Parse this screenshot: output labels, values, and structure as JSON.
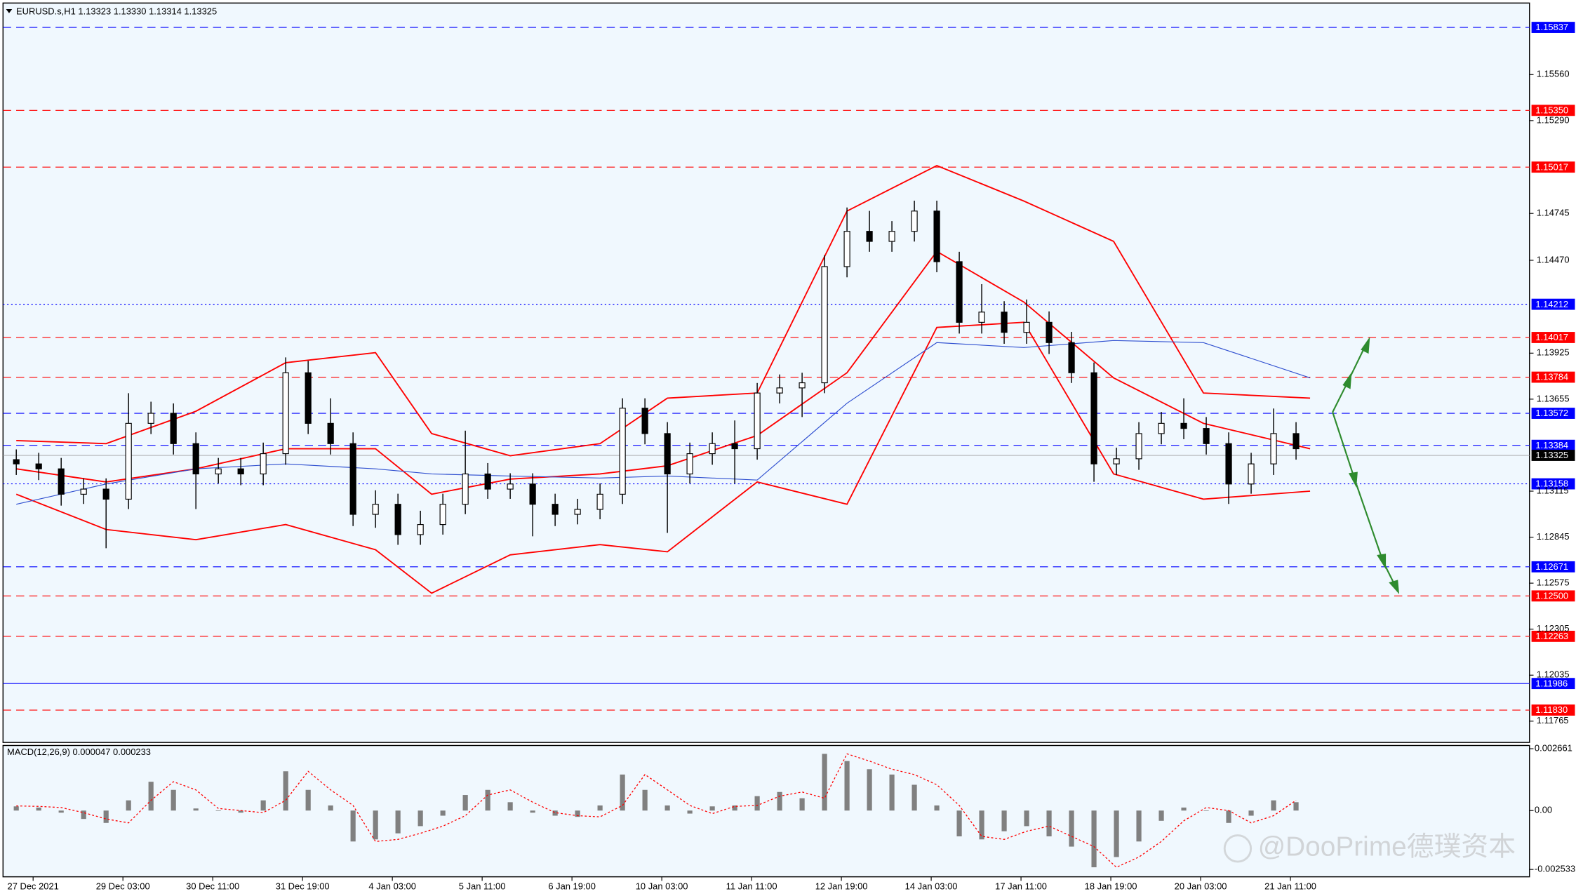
{
  "chart_data": {
    "type": "candlestick",
    "title": "EURUSD.s,H1  1.13323 1.13330 1.13314 1.13325",
    "watermark": "@DooPrime德璞资本",
    "xlim": [
      0,
      543
    ],
    "xticks": [
      {
        "value": 10,
        "label": "27 Dec 2021"
      },
      {
        "value": 42,
        "label": "29 Dec 03:00"
      },
      {
        "value": 74,
        "label": "30 Dec 11:00"
      },
      {
        "value": 106,
        "label": "31 Dec 19:00"
      },
      {
        "value": 138,
        "label": "4 Jan 03:00"
      },
      {
        "value": 170,
        "label": "5 Jan 11:00"
      },
      {
        "value": 202,
        "label": "6 Jan 19:00"
      },
      {
        "value": 234,
        "label": "10 Jan 03:00"
      },
      {
        "value": 266,
        "label": "11 Jan 11:00"
      },
      {
        "value": 298,
        "label": "12 Jan 19:00"
      },
      {
        "value": 330,
        "label": "14 Jan 03:00"
      },
      {
        "value": 362,
        "label": "17 Jan 11:00"
      },
      {
        "value": 394,
        "label": "18 Jan 19:00"
      },
      {
        "value": 426,
        "label": "20 Jan 03:00"
      },
      {
        "value": 458,
        "label": "21 Jan 11:00"
      }
    ],
    "ylim": [
      1.1164,
      1.1598
    ],
    "yticks": [
      {
        "value": 1.1556,
        "label": "1.15560"
      },
      {
        "value": 1.1529,
        "label": "1.15290"
      },
      {
        "value": 1.14745,
        "label": "1.14745"
      },
      {
        "value": 1.1447,
        "label": "1.14470"
      },
      {
        "value": 1.13925,
        "label": "1.13925"
      },
      {
        "value": 1.13655,
        "label": "1.13655"
      },
      {
        "value": 1.13115,
        "label": "1.13115"
      },
      {
        "value": 1.12845,
        "label": "1.12845"
      },
      {
        "value": 1.12575,
        "label": "1.12575"
      },
      {
        "value": 1.12305,
        "label": "1.12305"
      },
      {
        "value": 1.12035,
        "label": "1.12035"
      },
      {
        "value": 1.11765,
        "label": "1.11765"
      }
    ],
    "x": [
      4,
      12,
      20,
      28,
      36,
      44,
      52,
      60,
      68,
      76,
      84,
      92,
      100,
      108,
      116,
      124,
      132,
      140,
      148,
      156,
      164,
      172,
      180,
      188,
      196,
      204,
      212,
      220,
      228,
      236,
      244,
      252,
      260,
      268,
      276,
      284,
      292,
      300,
      308,
      316,
      324,
      332,
      340,
      348,
      356,
      364,
      372,
      380,
      388,
      396,
      404,
      412,
      420,
      428,
      436,
      444,
      452,
      460
    ],
    "open": [
      1.133,
      1.13275,
      1.13246,
      1.13097,
      1.13127,
      1.13068,
      1.13513,
      1.13572,
      1.13394,
      1.13216,
      1.13246,
      1.13216,
      1.13335,
      1.1381,
      1.13513,
      1.13394,
      1.12979,
      1.13038,
      1.1286,
      1.12919,
      1.13038,
      1.13216,
      1.13127,
      1.13157,
      1.13038,
      1.12979,
      1.13008,
      1.13097,
      1.13602,
      1.13453,
      1.13216,
      1.13335,
      1.13394,
      1.13364,
      1.13691,
      1.13721,
      1.13751,
      1.14433,
      1.1464,
      1.14581,
      1.1464,
      1.14759,
      1.14462,
      1.14106,
      1.14166,
      1.14047,
      1.14106,
      1.13987,
      1.1381,
      1.13275,
      1.13305,
      1.13453,
      1.13513,
      1.13483,
      1.13394,
      1.13157,
      1.13275,
      1.13453
    ],
    "high": [
      1.1336,
      1.1334,
      1.1331,
      1.1319,
      1.1319,
      1.1369,
      1.1364,
      1.1363,
      1.1346,
      1.1331,
      1.1331,
      1.134,
      1.139,
      1.1388,
      1.1366,
      1.1346,
      1.1312,
      1.131,
      1.13,
      1.131,
      1.1347,
      1.1328,
      1.1322,
      1.1322,
      1.131,
      1.1307,
      1.1316,
      1.1366,
      1.1366,
      1.1352,
      1.134,
      1.1346,
      1.1353,
      1.1375,
      1.138,
      1.1381,
      1.145,
      1.1478,
      1.1476,
      1.147,
      1.1482,
      1.1482,
      1.1452,
      1.1433,
      1.1423,
      1.1424,
      1.1417,
      1.1405,
      1.1387,
      1.1337,
      1.1352,
      1.1358,
      1.1366,
      1.1355,
      1.1346,
      1.1334,
      1.136,
      1.1352
    ],
    "low": [
      1.1321,
      1.1318,
      1.1303,
      1.1304,
      1.1278,
      1.1301,
      1.1345,
      1.1333,
      1.1301,
      1.1316,
      1.1315,
      1.1315,
      1.1327,
      1.1345,
      1.1333,
      1.1291,
      1.129,
      1.128,
      1.128,
      1.1286,
      1.1298,
      1.1307,
      1.1307,
      1.1285,
      1.1291,
      1.1292,
      1.1295,
      1.1304,
      1.1339,
      1.1287,
      1.1316,
      1.1327,
      1.1316,
      1.133,
      1.1363,
      1.1355,
      1.1369,
      1.1437,
      1.1452,
      1.1452,
      1.1458,
      1.144,
      1.1404,
      1.1404,
      1.1398,
      1.1398,
      1.1392,
      1.1375,
      1.1317,
      1.1321,
      1.1324,
      1.1339,
      1.1342,
      1.1333,
      1.1304,
      1.131,
      1.1321,
      1.133
    ],
    "close": [
      1.13275,
      1.13246,
      1.13097,
      1.13127,
      1.13068,
      1.13513,
      1.13572,
      1.13394,
      1.13216,
      1.13246,
      1.13216,
      1.13335,
      1.1381,
      1.13513,
      1.13394,
      1.12979,
      1.13038,
      1.1286,
      1.12919,
      1.13038,
      1.13216,
      1.13127,
      1.13157,
      1.13038,
      1.12979,
      1.13008,
      1.13097,
      1.13602,
      1.13453,
      1.13216,
      1.13335,
      1.13394,
      1.13364,
      1.13691,
      1.13721,
      1.13751,
      1.14433,
      1.1464,
      1.14581,
      1.1464,
      1.14759,
      1.14462,
      1.14106,
      1.14166,
      1.14047,
      1.14106,
      1.13987,
      1.1381,
      1.13275,
      1.13305,
      1.13453,
      1.13513,
      1.13483,
      1.13394,
      1.13157,
      1.13275,
      1.13453,
      1.13364
    ],
    "overlay_x": [
      4,
      36,
      68,
      100,
      132,
      152,
      180,
      212,
      236,
      268,
      300,
      332,
      363,
      395,
      427,
      465
    ],
    "overlays": [
      {
        "color": "#ff0000",
        "values": [
          1.13412,
          1.13394,
          1.13584,
          1.13869,
          1.13928,
          1.13453,
          1.13323,
          1.13394,
          1.13661,
          1.13691,
          1.14759,
          1.15026,
          1.14818,
          1.14581,
          1.13691,
          1.13661
        ]
      },
      {
        "color": "#ff0000",
        "values": [
          1.13246,
          1.13169,
          1.13246,
          1.13364,
          1.13364,
          1.13097,
          1.13186,
          1.13216,
          1.13264,
          1.13442,
          1.1381,
          1.14522,
          1.14225,
          1.1378,
          1.13513,
          1.13364
        ]
      },
      {
        "color": "#ff0000",
        "values": [
          1.13097,
          1.1289,
          1.1283,
          1.12919,
          1.12771,
          1.12516,
          1.12741,
          1.12801,
          1.12759,
          1.13169,
          1.13038,
          1.14076,
          1.14106,
          1.13216,
          1.13068,
          1.13115
        ]
      },
      {
        "color": "#3050d0",
        "values": [
          1.13038,
          1.13157,
          1.13246,
          1.13275,
          1.13246,
          1.13216,
          1.13204,
          1.13192,
          1.13204,
          1.1318,
          1.13631,
          1.13987,
          1.13958,
          1.13999,
          1.13987,
          1.1378
        ]
      }
    ],
    "levels": [
      {
        "value": 1.15837,
        "label": "1.15837",
        "color": "#0000ff",
        "style": "dash"
      },
      {
        "value": 1.1535,
        "label": "1.15350",
        "color": "#ff0000",
        "style": "dash"
      },
      {
        "value": 1.15017,
        "label": "1.15017",
        "color": "#ff0000",
        "style": "dash"
      },
      {
        "value": 1.14212,
        "label": "1.14212",
        "color": "#0000ff",
        "style": "dot"
      },
      {
        "value": 1.14017,
        "label": "1.14017",
        "color": "#ff0000",
        "style": "dash"
      },
      {
        "value": 1.13784,
        "label": "1.13784",
        "color": "#ff0000",
        "style": "dash"
      },
      {
        "value": 1.13572,
        "label": "1.13572",
        "color": "#0000ff",
        "style": "dash"
      },
      {
        "value": 1.13384,
        "label": "1.13384",
        "color": "#0000ff",
        "style": "dash"
      },
      {
        "value": 1.13325,
        "label": "1.13325",
        "color": "#000000",
        "style": "solid"
      },
      {
        "value": 1.13158,
        "label": "1.13158",
        "color": "#0000ff",
        "style": "dot"
      },
      {
        "value": 1.12671,
        "label": "1.12671",
        "color": "#0000ff",
        "style": "dash"
      },
      {
        "value": 1.125,
        "label": "1.12500",
        "color": "#ff0000",
        "style": "dash"
      },
      {
        "value": 1.12263,
        "label": "1.12263",
        "color": "#ff0000",
        "style": "dash"
      },
      {
        "value": 1.11986,
        "label": "1.11986",
        "color": "#0000ff",
        "style": "solid"
      },
      {
        "value": 1.1183,
        "label": "1.11830",
        "color": "#ff0000",
        "style": "dash"
      }
    ],
    "macd": {
      "title": "MACD(12,26,9) 0.000047 0.000233",
      "ylim": [
        -0.00285,
        0.0028
      ],
      "yticks": [
        0.002661,
        {
          "value": 0,
          "label": "0.00"
        },
        -0.002533
      ],
      "histogram_color": "#808080",
      "signal_color": "#ff0000",
      "histogram": [
        0.00018,
        0.00013,
        -9e-05,
        -0.00036,
        -0.00053,
        0.00044,
        0.00124,
        0.00089,
        9e-05,
        0,
        -9e-05,
        0.00044,
        0.00169,
        0.00089,
        0.00022,
        -0.00133,
        -0.00124,
        -0.00098,
        -0.00067,
        -0.00022,
        0.00067,
        0.00089,
        0.00036,
        -9e-05,
        -0.00022,
        -0.00027,
        0.00022,
        0.00155,
        0.00089,
        0.00022,
        -0.00013,
        0.00018,
        0.00022,
        0.00062,
        0.0008,
        0.00053,
        0.00244,
        0.00213,
        0.00178,
        0.00155,
        0.00111,
        0.00022,
        -0.00111,
        -0.00124,
        -0.00089,
        -0.00067,
        -0.00111,
        -0.00155,
        -0.00244,
        -0.002,
        -0.00133,
        -0.00044,
        0.00013,
        0,
        -0.00053,
        -0.00022,
        0.00044,
        0.00036
      ],
      "signal": [
        0.0002,
        0.00018,
        0.00013,
        -9e-05,
        -0.00036,
        -0.00053,
        0.00044,
        0.00124,
        0.00089,
        9e-05,
        0,
        -9e-05,
        0.00044,
        0.00169,
        0.00089,
        0.00022,
        -0.00133,
        -0.00124,
        -0.00098,
        -0.00067,
        -0.00022,
        0.00067,
        0.00089,
        0.00036,
        -9e-05,
        -0.00022,
        -0.00027,
        0.00022,
        0.00155,
        0.00089,
        0.00022,
        -0.00013,
        0.00018,
        0.00022,
        0.00062,
        0.0008,
        0.00053,
        0.00244,
        0.00213,
        0.00178,
        0.00155,
        0.00111,
        0.00022,
        -0.00111,
        -0.00124,
        -0.00089,
        -0.00067,
        -0.00111,
        -0.00155,
        -0.00244,
        -0.002,
        -0.00133,
        -0.00044,
        0.00013,
        0,
        -0.00053,
        -0.00022,
        0.00044
      ]
    }
  }
}
